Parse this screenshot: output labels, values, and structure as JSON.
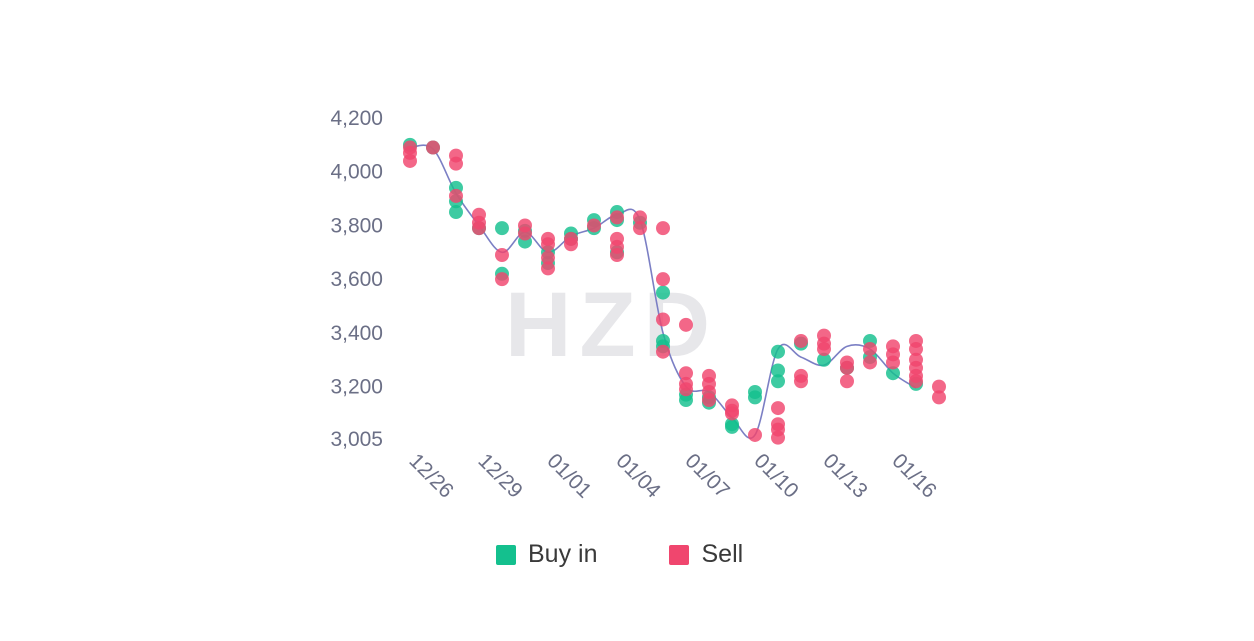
{
  "watermark": "HZD",
  "chart_data": {
    "type": "scatter",
    "title": "",
    "xlabel": "",
    "ylabel": "",
    "ylim": [
      3005,
      4200
    ],
    "yticks": [
      "4,200",
      "4,000",
      "3,800",
      "3,600",
      "3,400",
      "3,200",
      "3,005"
    ],
    "ytick_values": [
      4200,
      4000,
      3800,
      3600,
      3400,
      3200,
      3005
    ],
    "xticks": [
      "12/26",
      "12/29",
      "01/01",
      "01/04",
      "01/07",
      "01/10",
      "01/13",
      "01/16"
    ],
    "xtick_index": [
      0,
      3,
      6,
      9,
      12,
      15,
      18,
      21
    ],
    "grid": false,
    "legend_placement": "bottom",
    "colors": {
      "buy": "#14c08e",
      "sell": "#f0466e",
      "line": "#7b7fc4"
    },
    "trend_line": {
      "name": "",
      "points": [
        [
          0,
          4090
        ],
        [
          1,
          4085
        ],
        [
          2,
          3920
        ],
        [
          3,
          3800
        ],
        [
          4,
          3700
        ],
        [
          5,
          3775
        ],
        [
          6,
          3700
        ],
        [
          7,
          3760
        ],
        [
          8,
          3790
        ],
        [
          9,
          3840
        ],
        [
          10,
          3820
        ],
        [
          11,
          3400
        ],
        [
          12,
          3200
        ],
        [
          13,
          3180
        ],
        [
          14,
          3085
        ],
        [
          15,
          3020
        ],
        [
          16,
          3340
        ],
        [
          17,
          3310
        ],
        [
          18,
          3280
        ],
        [
          19,
          3350
        ],
        [
          20,
          3340
        ],
        [
          21,
          3250
        ],
        [
          22,
          3195
        ]
      ]
    },
    "series": [
      {
        "name": "Buy in",
        "points": [
          [
            0,
            4100
          ],
          [
            1,
            4090
          ],
          [
            2,
            3940
          ],
          [
            2,
            3890
          ],
          [
            2,
            3850
          ],
          [
            3,
            3790
          ],
          [
            4,
            3790
          ],
          [
            4,
            3620
          ],
          [
            5,
            3780
          ],
          [
            5,
            3740
          ],
          [
            6,
            3700
          ],
          [
            6,
            3660
          ],
          [
            7,
            3770
          ],
          [
            7,
            3750
          ],
          [
            8,
            3820
          ],
          [
            8,
            3790
          ],
          [
            9,
            3850
          ],
          [
            9,
            3820
          ],
          [
            9,
            3700
          ],
          [
            10,
            3810
          ],
          [
            11,
            3550
          ],
          [
            11,
            3370
          ],
          [
            11,
            3350
          ],
          [
            12,
            3170
          ],
          [
            12,
            3150
          ],
          [
            13,
            3160
          ],
          [
            13,
            3140
          ],
          [
            14,
            3060
          ],
          [
            14,
            3050
          ],
          [
            15,
            3180
          ],
          [
            15,
            3160
          ],
          [
            16,
            3330
          ],
          [
            16,
            3260
          ],
          [
            16,
            3220
          ],
          [
            17,
            3360
          ],
          [
            18,
            3300
          ],
          [
            19,
            3270
          ],
          [
            20,
            3370
          ],
          [
            20,
            3310
          ],
          [
            21,
            3250
          ],
          [
            22,
            3210
          ]
        ]
      },
      {
        "name": "Sell",
        "points": [
          [
            0,
            4090
          ],
          [
            0,
            4070
          ],
          [
            0,
            4040
          ],
          [
            1,
            4090
          ],
          [
            2,
            4060
          ],
          [
            2,
            4030
          ],
          [
            2,
            3910
          ],
          [
            3,
            3840
          ],
          [
            3,
            3810
          ],
          [
            3,
            3790
          ],
          [
            4,
            3690
          ],
          [
            4,
            3600
          ],
          [
            5,
            3800
          ],
          [
            5,
            3770
          ],
          [
            6,
            3750
          ],
          [
            6,
            3730
          ],
          [
            6,
            3680
          ],
          [
            6,
            3640
          ],
          [
            7,
            3750
          ],
          [
            7,
            3730
          ],
          [
            8,
            3800
          ],
          [
            9,
            3830
          ],
          [
            9,
            3750
          ],
          [
            9,
            3720
          ],
          [
            9,
            3690
          ],
          [
            10,
            3830
          ],
          [
            10,
            3790
          ],
          [
            11,
            3790
          ],
          [
            11,
            3600
          ],
          [
            11,
            3450
          ],
          [
            11,
            3330
          ],
          [
            12,
            3430
          ],
          [
            12,
            3250
          ],
          [
            12,
            3210
          ],
          [
            12,
            3190
          ],
          [
            13,
            3240
          ],
          [
            13,
            3210
          ],
          [
            13,
            3180
          ],
          [
            13,
            3150
          ],
          [
            14,
            3130
          ],
          [
            14,
            3110
          ],
          [
            14,
            3100
          ],
          [
            15,
            3020
          ],
          [
            16,
            3120
          ],
          [
            16,
            3060
          ],
          [
            16,
            3040
          ],
          [
            16,
            3010
          ],
          [
            17,
            3370
          ],
          [
            17,
            3240
          ],
          [
            17,
            3220
          ],
          [
            18,
            3390
          ],
          [
            18,
            3360
          ],
          [
            18,
            3340
          ],
          [
            19,
            3290
          ],
          [
            19,
            3270
          ],
          [
            19,
            3220
          ],
          [
            20,
            3340
          ],
          [
            20,
            3290
          ],
          [
            21,
            3350
          ],
          [
            21,
            3320
          ],
          [
            21,
            3290
          ],
          [
            22,
            3370
          ],
          [
            22,
            3340
          ],
          [
            22,
            3300
          ],
          [
            22,
            3270
          ],
          [
            22,
            3240
          ],
          [
            22,
            3220
          ],
          [
            23,
            3200
          ],
          [
            23,
            3160
          ]
        ]
      }
    ]
  },
  "legend": {
    "buy_label": "Buy in",
    "sell_label": "Sell"
  }
}
